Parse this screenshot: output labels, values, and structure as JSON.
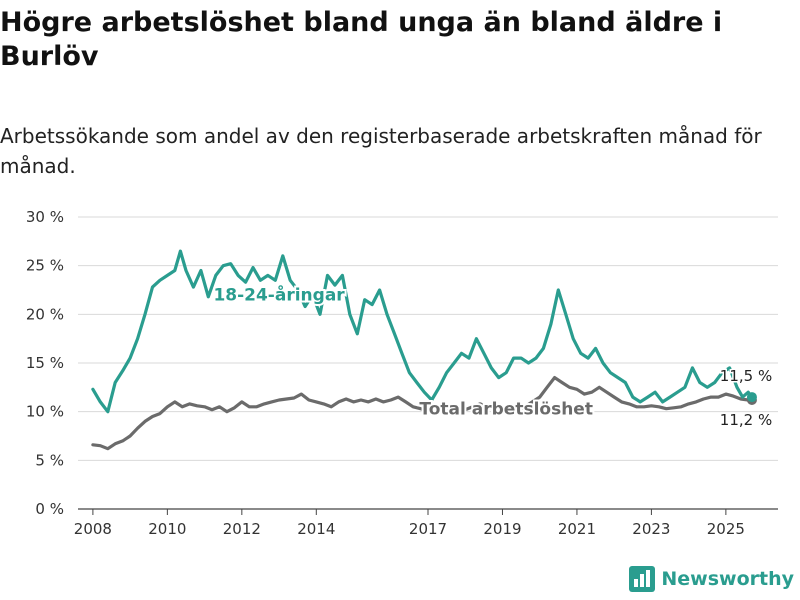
{
  "title": "Högre arbetslöshet bland unga än bland äldre i Burlöv",
  "subtitle": "Arbetssökande som andel av den registerbaserade arbetskraften månad för månad.",
  "brand": {
    "name": "Newsworthy",
    "icon": "bar-chart-icon"
  },
  "chart_data": {
    "type": "line",
    "title": "Högre arbetslöshet bland unga än bland äldre i Burlöv",
    "subtitle": "Arbetssökande som andel av den registerbaserade arbetskraften månad för månad.",
    "xlabel": "",
    "ylabel": "",
    "xlim": [
      2007.6,
      2026.4
    ],
    "ylim": [
      0,
      30
    ],
    "x_ticks": [
      2008,
      2010,
      2012,
      2014,
      2017,
      2019,
      2021,
      2023,
      2025
    ],
    "y_ticks": [
      {
        "value": 0,
        "label": "0 %"
      },
      {
        "value": 5,
        "label": "5 %"
      },
      {
        "value": 10,
        "label": "10 %"
      },
      {
        "value": 15,
        "label": "15 %"
      },
      {
        "value": 20,
        "label": "20 %"
      },
      {
        "value": 25,
        "label": "25 %"
      },
      {
        "value": 30,
        "label": "30 %"
      }
    ],
    "grid": "horizontal",
    "series": [
      {
        "name": "18-24-åringar",
        "color": "#2a9d8f",
        "end_label": "11,5 %",
        "points": [
          [
            2008.0,
            12.3
          ],
          [
            2008.2,
            11.0
          ],
          [
            2008.4,
            10.0
          ],
          [
            2008.6,
            13.0
          ],
          [
            2008.8,
            14.2
          ],
          [
            2009.0,
            15.5
          ],
          [
            2009.2,
            17.5
          ],
          [
            2009.4,
            20.0
          ],
          [
            2009.6,
            22.8
          ],
          [
            2009.8,
            23.5
          ],
          [
            2010.0,
            24.0
          ],
          [
            2010.2,
            24.5
          ],
          [
            2010.35,
            26.5
          ],
          [
            2010.5,
            24.5
          ],
          [
            2010.7,
            22.8
          ],
          [
            2010.9,
            24.5
          ],
          [
            2011.1,
            21.8
          ],
          [
            2011.3,
            24.0
          ],
          [
            2011.5,
            25.0
          ],
          [
            2011.7,
            25.2
          ],
          [
            2011.9,
            24.0
          ],
          [
            2012.1,
            23.3
          ],
          [
            2012.3,
            24.8
          ],
          [
            2012.5,
            23.5
          ],
          [
            2012.7,
            24.0
          ],
          [
            2012.9,
            23.5
          ],
          [
            2013.1,
            26.0
          ],
          [
            2013.3,
            23.5
          ],
          [
            2013.5,
            22.5
          ],
          [
            2013.7,
            20.8
          ],
          [
            2013.9,
            22.0
          ],
          [
            2014.1,
            20.0
          ],
          [
            2014.3,
            24.0
          ],
          [
            2014.5,
            23.0
          ],
          [
            2014.7,
            24.0
          ],
          [
            2014.9,
            20.0
          ],
          [
            2015.1,
            18.0
          ],
          [
            2015.3,
            21.5
          ],
          [
            2015.5,
            21.0
          ],
          [
            2015.7,
            22.5
          ],
          [
            2015.9,
            20.0
          ],
          [
            2016.1,
            18.0
          ],
          [
            2016.3,
            16.0
          ],
          [
            2016.5,
            14.0
          ],
          [
            2016.7,
            13.0
          ],
          [
            2016.9,
            12.0
          ],
          [
            2017.1,
            11.2
          ],
          [
            2017.3,
            12.5
          ],
          [
            2017.5,
            14.0
          ],
          [
            2017.7,
            15.0
          ],
          [
            2017.9,
            16.0
          ],
          [
            2018.1,
            15.5
          ],
          [
            2018.3,
            17.5
          ],
          [
            2018.5,
            16.0
          ],
          [
            2018.7,
            14.5
          ],
          [
            2018.9,
            13.5
          ],
          [
            2019.1,
            14.0
          ],
          [
            2019.3,
            15.5
          ],
          [
            2019.5,
            15.5
          ],
          [
            2019.7,
            15.0
          ],
          [
            2019.9,
            15.5
          ],
          [
            2020.1,
            16.5
          ],
          [
            2020.3,
            19.0
          ],
          [
            2020.5,
            22.5
          ],
          [
            2020.7,
            20.0
          ],
          [
            2020.9,
            17.5
          ],
          [
            2021.1,
            16.0
          ],
          [
            2021.3,
            15.5
          ],
          [
            2021.5,
            16.5
          ],
          [
            2021.7,
            15.0
          ],
          [
            2021.9,
            14.0
          ],
          [
            2022.1,
            13.5
          ],
          [
            2022.3,
            13.0
          ],
          [
            2022.5,
            11.5
          ],
          [
            2022.7,
            11.0
          ],
          [
            2022.9,
            11.5
          ],
          [
            2023.1,
            12.0
          ],
          [
            2023.3,
            11.0
          ],
          [
            2023.5,
            11.5
          ],
          [
            2023.7,
            12.0
          ],
          [
            2023.9,
            12.5
          ],
          [
            2024.1,
            14.5
          ],
          [
            2024.3,
            13.0
          ],
          [
            2024.5,
            12.5
          ],
          [
            2024.7,
            13.0
          ],
          [
            2024.9,
            14.0
          ],
          [
            2025.1,
            14.5
          ],
          [
            2025.3,
            12.5
          ],
          [
            2025.45,
            11.5
          ],
          [
            2025.6,
            12.0
          ],
          [
            2025.7,
            11.5
          ]
        ]
      },
      {
        "name": "Total arbetslöshet",
        "color": "#6b6b6b",
        "end_label": "11,2 %",
        "points": [
          [
            2008.0,
            6.6
          ],
          [
            2008.2,
            6.5
          ],
          [
            2008.4,
            6.2
          ],
          [
            2008.6,
            6.7
          ],
          [
            2008.8,
            7.0
          ],
          [
            2009.0,
            7.5
          ],
          [
            2009.2,
            8.3
          ],
          [
            2009.4,
            9.0
          ],
          [
            2009.6,
            9.5
          ],
          [
            2009.8,
            9.8
          ],
          [
            2010.0,
            10.5
          ],
          [
            2010.2,
            11.0
          ],
          [
            2010.4,
            10.5
          ],
          [
            2010.6,
            10.8
          ],
          [
            2010.8,
            10.6
          ],
          [
            2011.0,
            10.5
          ],
          [
            2011.2,
            10.2
          ],
          [
            2011.4,
            10.5
          ],
          [
            2011.6,
            10.0
          ],
          [
            2011.8,
            10.4
          ],
          [
            2012.0,
            11.0
          ],
          [
            2012.2,
            10.5
          ],
          [
            2012.4,
            10.5
          ],
          [
            2012.6,
            10.8
          ],
          [
            2012.8,
            11.0
          ],
          [
            2013.0,
            11.2
          ],
          [
            2013.2,
            11.3
          ],
          [
            2013.4,
            11.4
          ],
          [
            2013.6,
            11.8
          ],
          [
            2013.8,
            11.2
          ],
          [
            2014.0,
            11.0
          ],
          [
            2014.2,
            10.8
          ],
          [
            2014.4,
            10.5
          ],
          [
            2014.6,
            11.0
          ],
          [
            2014.8,
            11.3
          ],
          [
            2015.0,
            11.0
          ],
          [
            2015.2,
            11.2
          ],
          [
            2015.4,
            11.0
          ],
          [
            2015.6,
            11.3
          ],
          [
            2015.8,
            11.0
          ],
          [
            2016.0,
            11.2
          ],
          [
            2016.2,
            11.5
          ],
          [
            2016.4,
            11.0
          ],
          [
            2016.6,
            10.5
          ],
          [
            2016.8,
            10.3
          ],
          [
            2017.0,
            10.0
          ],
          [
            2017.2,
            10.3
          ],
          [
            2017.4,
            10.3
          ],
          [
            2017.6,
            10.5
          ],
          [
            2017.8,
            10.3
          ],
          [
            2018.0,
            10.2
          ],
          [
            2018.2,
            10.5
          ],
          [
            2018.4,
            10.8
          ],
          [
            2018.6,
            10.5
          ],
          [
            2018.8,
            10.3
          ],
          [
            2019.0,
            10.0
          ],
          [
            2019.2,
            10.0
          ],
          [
            2019.4,
            10.2
          ],
          [
            2019.6,
            10.5
          ],
          [
            2019.8,
            11.0
          ],
          [
            2020.0,
            11.5
          ],
          [
            2020.2,
            12.5
          ],
          [
            2020.4,
            13.5
          ],
          [
            2020.6,
            13.0
          ],
          [
            2020.8,
            12.5
          ],
          [
            2021.0,
            12.3
          ],
          [
            2021.2,
            11.8
          ],
          [
            2021.4,
            12.0
          ],
          [
            2021.6,
            12.5
          ],
          [
            2021.8,
            12.0
          ],
          [
            2022.0,
            11.5
          ],
          [
            2022.2,
            11.0
          ],
          [
            2022.4,
            10.8
          ],
          [
            2022.6,
            10.5
          ],
          [
            2022.8,
            10.5
          ],
          [
            2023.0,
            10.6
          ],
          [
            2023.2,
            10.5
          ],
          [
            2023.4,
            10.3
          ],
          [
            2023.6,
            10.4
          ],
          [
            2023.8,
            10.5
          ],
          [
            2024.0,
            10.8
          ],
          [
            2024.2,
            11.0
          ],
          [
            2024.4,
            11.3
          ],
          [
            2024.6,
            11.5
          ],
          [
            2024.8,
            11.5
          ],
          [
            2025.0,
            11.8
          ],
          [
            2025.2,
            11.6
          ],
          [
            2025.4,
            11.3
          ],
          [
            2025.6,
            11.2
          ],
          [
            2025.7,
            11.2
          ]
        ]
      }
    ]
  }
}
